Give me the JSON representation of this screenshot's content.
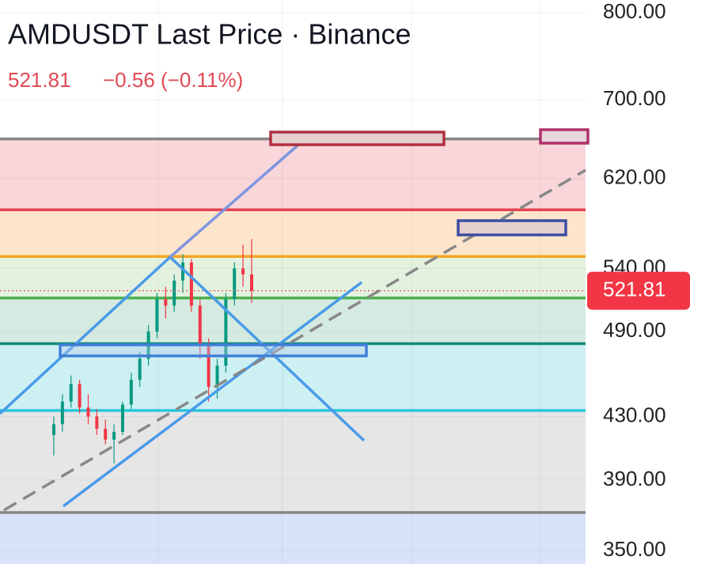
{
  "chart_data": {
    "type": "candlestick",
    "title": "AMDUSDT Last Price · Binance",
    "last_price": 521.81,
    "change": "−0.56 (−0.11%)",
    "log_scale": true,
    "grid": true,
    "ylim": [
      337,
      816
    ],
    "yticks": [
      {
        "value": 350,
        "label": "350.00"
      },
      {
        "value": 390,
        "label": "390.00"
      },
      {
        "value": 430,
        "label": "430.00"
      },
      {
        "value": 490,
        "label": "490.00"
      },
      {
        "value": 540,
        "label": "540.00"
      },
      {
        "value": 620,
        "label": "620.00"
      },
      {
        "value": 700,
        "label": "700.00"
      },
      {
        "value": 800,
        "label": "800.00"
      }
    ],
    "categories": [
      null,
      null,
      null,
      null,
      null,
      null,
      null,
      null,
      null,
      null,
      null,
      null,
      null,
      null,
      null,
      null,
      null,
      null,
      null,
      null,
      null,
      null,
      null,
      null
    ],
    "open": [
      418,
      425,
      440,
      452,
      436,
      430,
      422,
      415,
      420,
      438,
      455,
      470,
      490,
      515,
      510,
      530,
      545,
      510,
      480,
      450,
      465,
      515,
      540,
      535
    ],
    "high": [
      430,
      445,
      458,
      455,
      445,
      435,
      428,
      425,
      440,
      460,
      475,
      495,
      520,
      525,
      535,
      552,
      548,
      515,
      485,
      470,
      520,
      545,
      560,
      565
    ],
    "low": [
      405,
      420,
      436,
      432,
      425,
      418,
      412,
      400,
      418,
      435,
      450,
      465,
      485,
      500,
      505,
      520,
      505,
      470,
      440,
      442,
      460,
      510,
      525,
      512
    ],
    "close": [
      425,
      440,
      452,
      436,
      430,
      422,
      415,
      420,
      438,
      455,
      470,
      490,
      515,
      510,
      530,
      545,
      510,
      480,
      450,
      465,
      515,
      540,
      535,
      521.81
    ],
    "up_color": "#089981",
    "down_color": "#f23645",
    "levels": [
      {
        "value": 659,
        "color": "#868686",
        "fill": "#f9d6d9"
      },
      {
        "value": 591,
        "color": "#e5424f",
        "fill": "#fde5cb"
      },
      {
        "value": 550,
        "color": "#f5a623",
        "fill": "#e3f1df"
      },
      {
        "value": 516,
        "color": "#4caf50",
        "fill": "#d5ebe1"
      },
      {
        "value": 481,
        "color": "#138a7a",
        "fill": "#cdf0f3"
      },
      {
        "value": 434,
        "color": "#26c6da",
        "fill": "#e6e6e6"
      },
      {
        "value": 371,
        "color": "#868686",
        "fill": "#d8e3fa"
      }
    ]
  }
}
